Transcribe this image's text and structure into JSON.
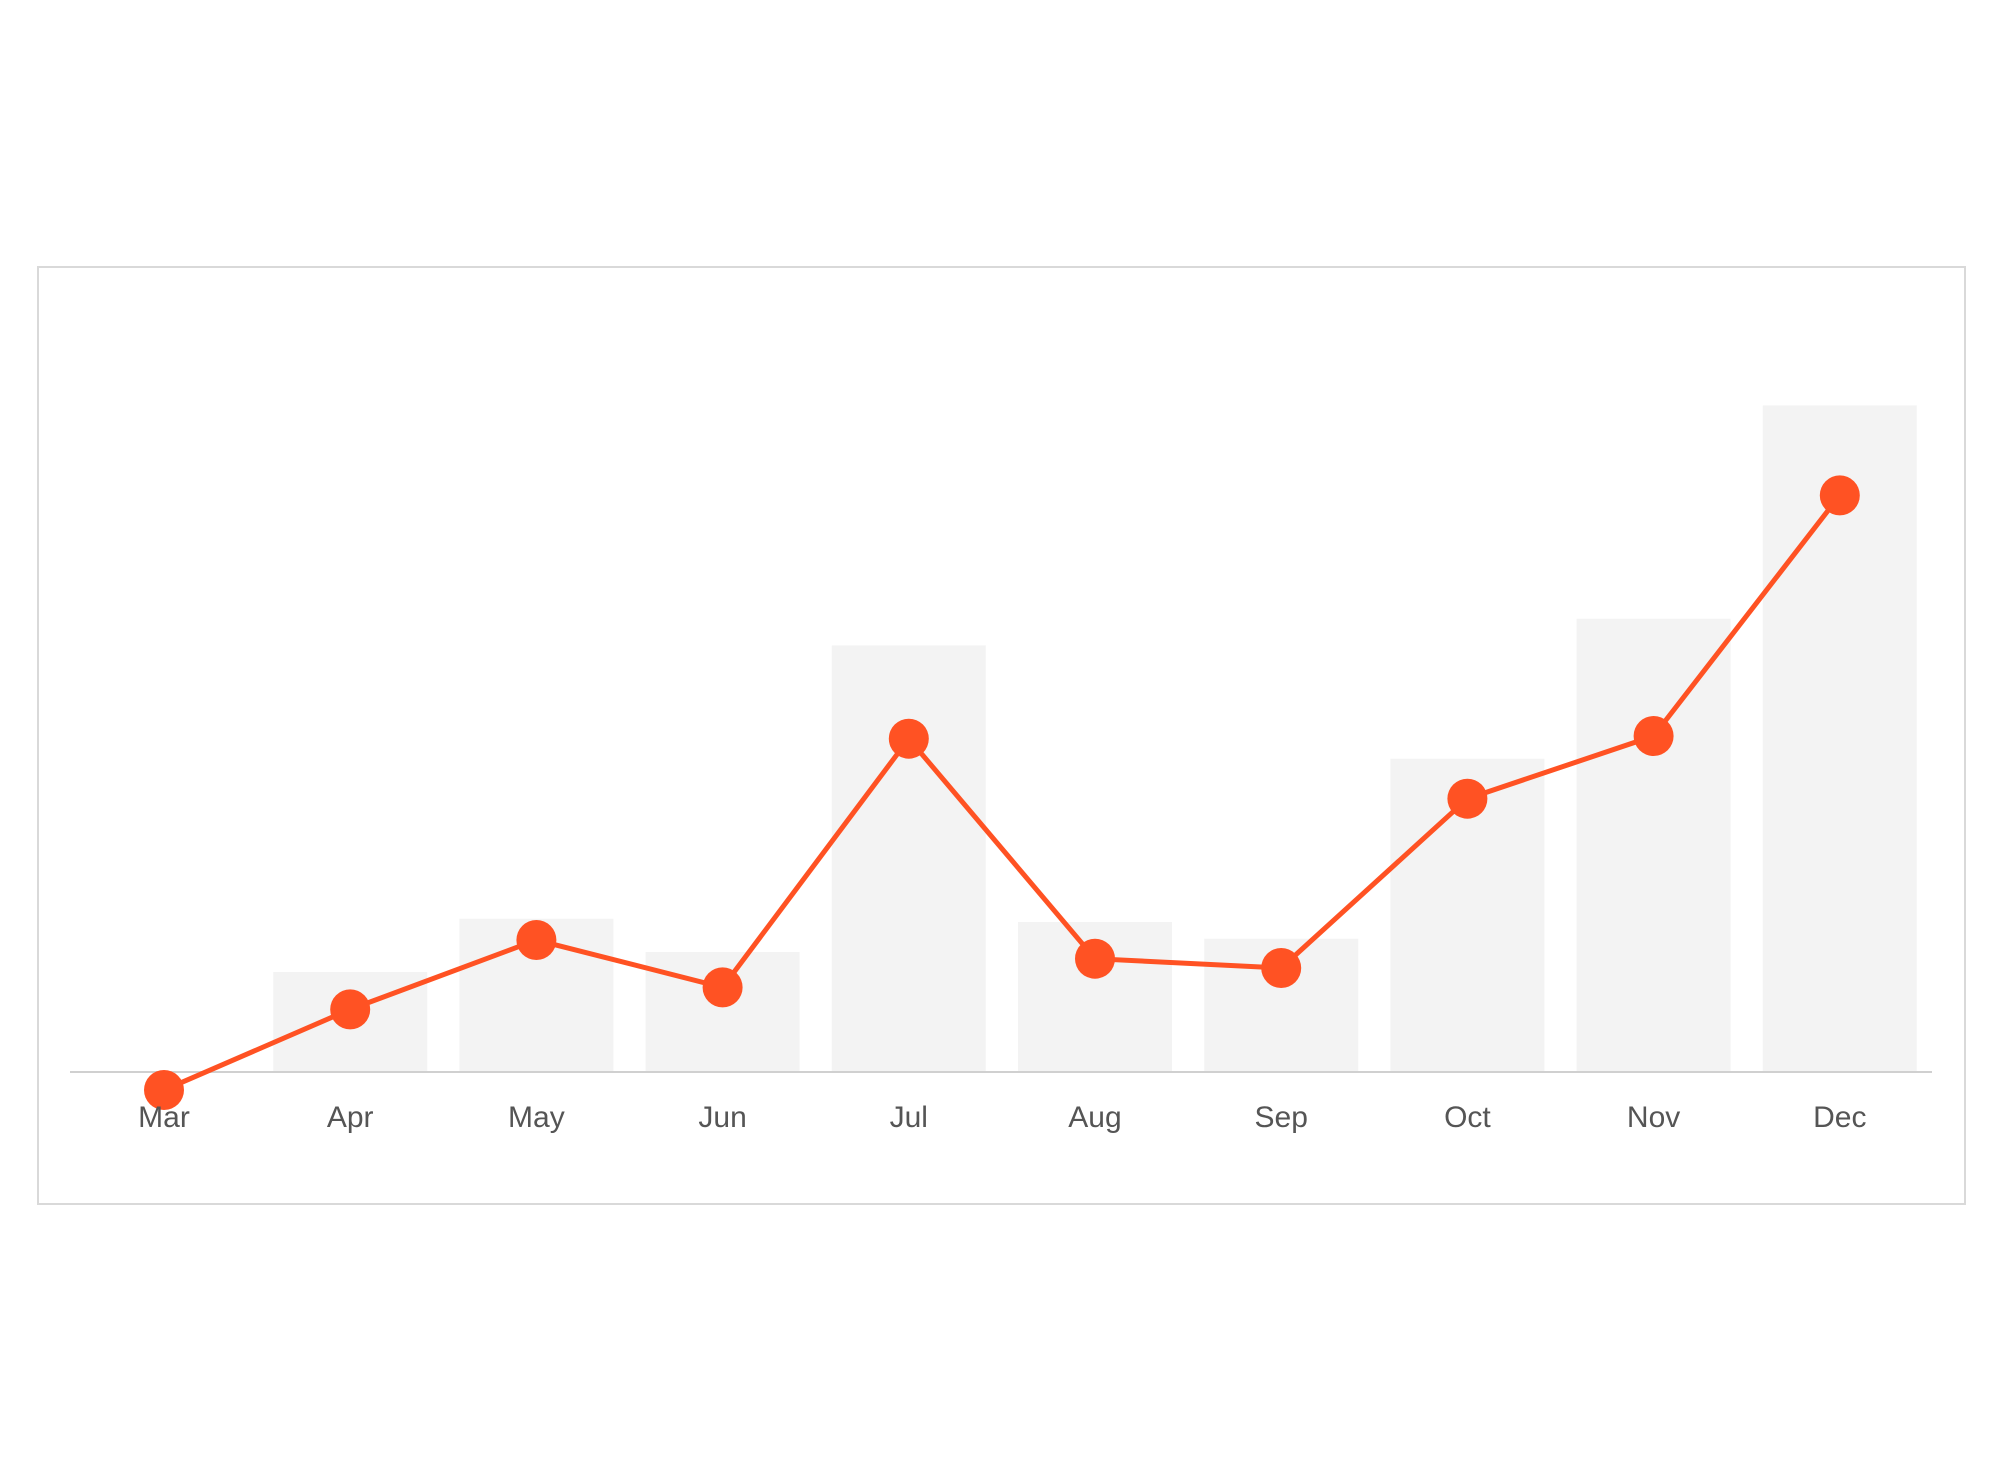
{
  "chart_data": {
    "type": "bar",
    "categories": [
      "Mar",
      "Apr",
      "May",
      "Jun",
      "Jul",
      "Aug",
      "Sep",
      "Oct",
      "Nov",
      "Dec"
    ],
    "series": [
      {
        "type": "bar",
        "color": "#f3f3f3",
        "values": [
          0,
          15,
          23,
          18,
          64,
          22.5,
          20,
          47,
          68,
          100
        ]
      },
      {
        "type": "line",
        "color": "#ff5223",
        "values": [
          -2.7,
          9.4,
          19.8,
          12.7,
          50,
          17,
          15.6,
          41,
          50.4,
          86.5
        ]
      }
    ],
    "ylim": [
      -10,
      110
    ]
  }
}
